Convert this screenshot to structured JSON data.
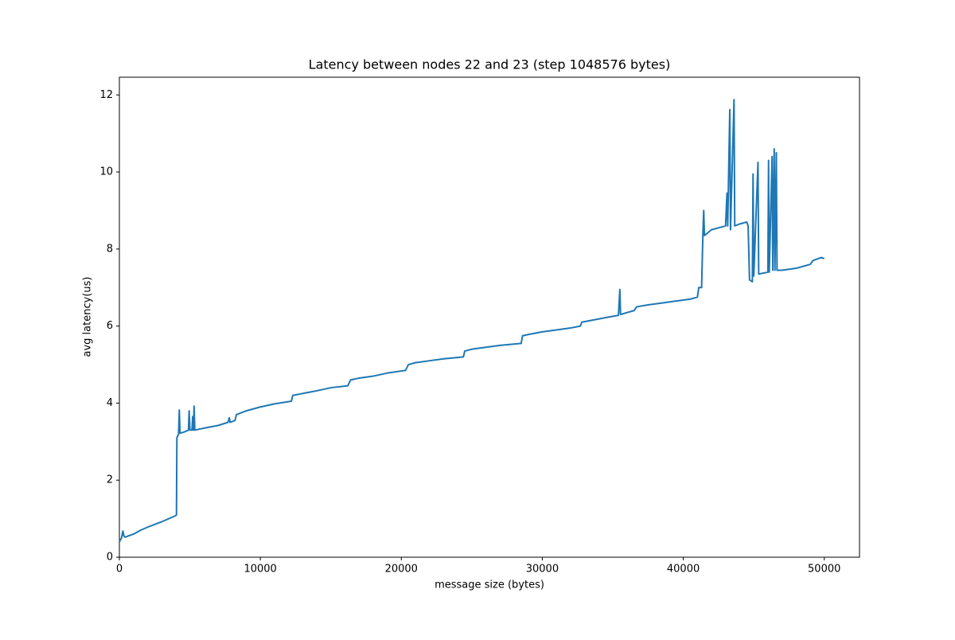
{
  "chart_data": {
    "type": "line",
    "title": "Latency between nodes 22 and 23 (step 1048576 bytes)",
    "x_label": "message size (bytes)",
    "y_label": "avg latency(us)",
    "color": "#1f77b4",
    "x": [
      0,
      150,
      250,
      320,
      400,
      1000,
      1500,
      2000,
      2500,
      3000,
      3500,
      4000,
      4050,
      4080,
      4200,
      4250,
      4300,
      4600,
      4900,
      4950,
      5000,
      5150,
      5200,
      5250,
      5300,
      5350,
      6000,
      7000,
      7700,
      7800,
      7850,
      8200,
      8300,
      9000,
      10000,
      11000,
      12200,
      12300,
      13000,
      14000,
      15000,
      16200,
      16400,
      17000,
      18000,
      19000,
      20300,
      20500,
      21000,
      22000,
      23000,
      24400,
      24500,
      25000,
      26000,
      27000,
      28500,
      28600,
      29000,
      30000,
      31000,
      32000,
      32700,
      32800,
      33500,
      34500,
      35400,
      35500,
      35550,
      36000,
      36500,
      36700,
      37500,
      38500,
      39500,
      40500,
      41000,
      41100,
      41300,
      41400,
      41450,
      41500,
      42000,
      42500,
      43000,
      43100,
      43150,
      43300,
      43350,
      43600,
      43650,
      44000,
      44500,
      44600,
      44700,
      44900,
      44950,
      45000,
      45300,
      45350,
      46000,
      46050,
      46100,
      46300,
      46350,
      46450,
      46500,
      46600,
      46650,
      47000,
      48000,
      49000,
      49200,
      49800,
      50000
    ],
    "values": [
      0.4,
      0.5,
      0.68,
      0.55,
      0.52,
      0.6,
      0.7,
      0.78,
      0.85,
      0.92,
      1.0,
      1.08,
      1.1,
      3.1,
      3.2,
      3.82,
      3.22,
      3.25,
      3.3,
      3.8,
      3.3,
      3.3,
      3.65,
      3.3,
      3.92,
      3.3,
      3.35,
      3.42,
      3.5,
      3.62,
      3.5,
      3.55,
      3.7,
      3.8,
      3.9,
      3.98,
      4.05,
      4.2,
      4.25,
      4.32,
      4.4,
      4.45,
      4.6,
      4.65,
      4.7,
      4.78,
      4.85,
      5.0,
      5.05,
      5.1,
      5.15,
      5.2,
      5.35,
      5.4,
      5.45,
      5.5,
      5.55,
      5.75,
      5.78,
      5.85,
      5.9,
      5.95,
      6.0,
      6.1,
      6.15,
      6.22,
      6.28,
      6.95,
      6.3,
      6.35,
      6.4,
      6.5,
      6.55,
      6.6,
      6.65,
      6.7,
      6.75,
      7.0,
      7.0,
      8.5,
      9.0,
      8.35,
      8.5,
      8.55,
      8.6,
      9.45,
      8.6,
      11.62,
      8.5,
      11.88,
      8.6,
      8.65,
      8.7,
      8.6,
      7.2,
      7.15,
      9.95,
      7.3,
      10.25,
      7.35,
      7.4,
      10.3,
      7.4,
      10.4,
      7.45,
      10.6,
      7.45,
      10.5,
      7.45,
      7.45,
      7.5,
      7.6,
      7.7,
      7.78,
      7.75
    ],
    "xlim": [
      0,
      52500
    ],
    "ylim": [
      0,
      12.46
    ],
    "xticks": [
      0,
      10000,
      20000,
      30000,
      40000,
      50000
    ],
    "yticks": [
      0,
      2,
      4,
      6,
      8,
      10,
      12
    ]
  }
}
